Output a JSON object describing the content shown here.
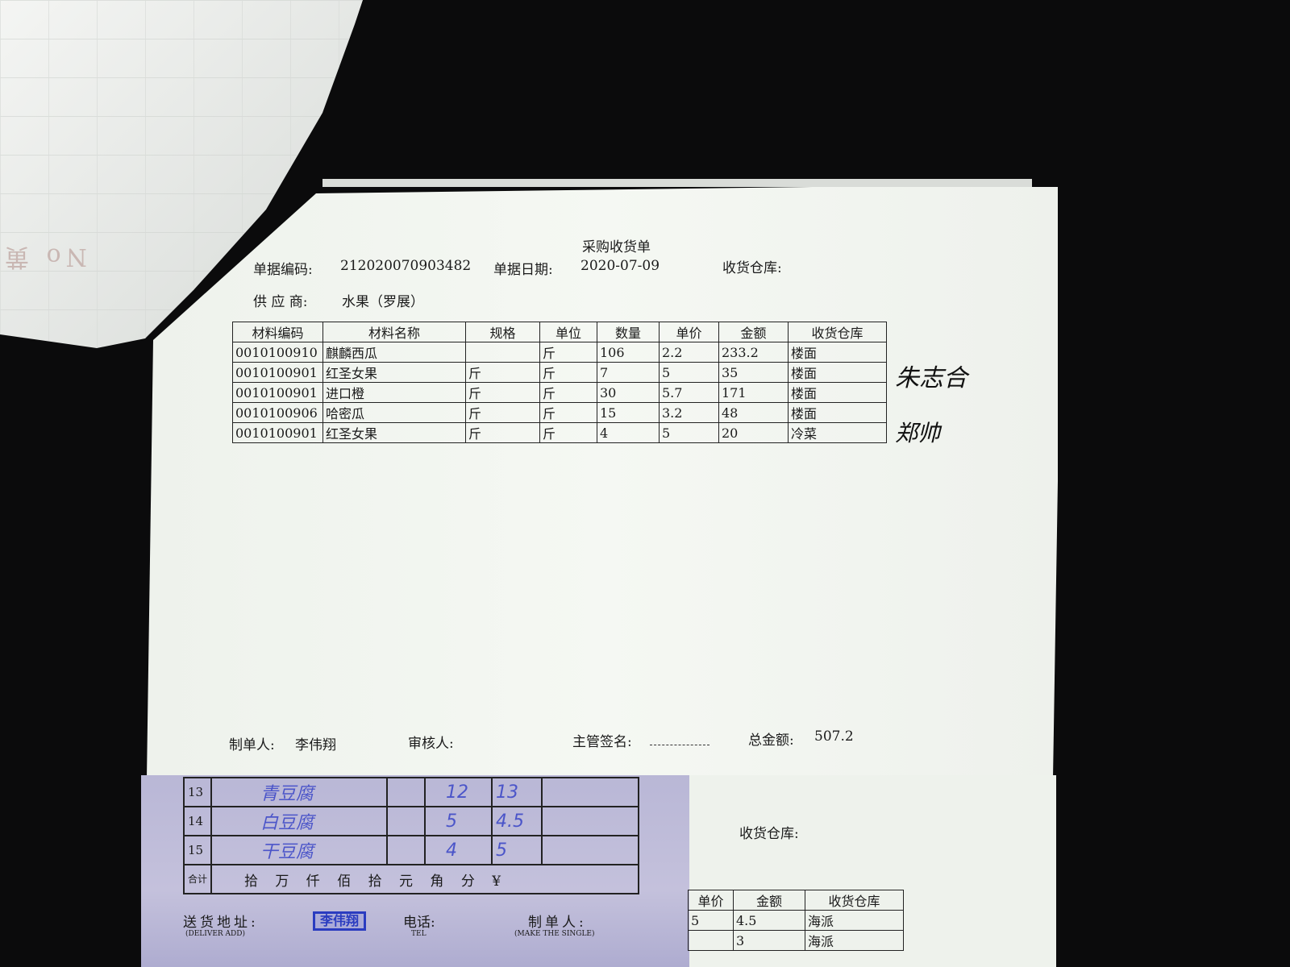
{
  "receipt": {
    "title": "采购收货单",
    "doc_no_label": "单据编码:",
    "doc_no": "212020070903482",
    "doc_date_label": "单据日期:",
    "doc_date": "2020-07-09",
    "warehouse_label": "收货仓库:",
    "supplier_label": "供 应 商:",
    "supplier": "水果（罗展）",
    "columns": [
      "材料编码",
      "材料名称",
      "规格",
      "单位",
      "数量",
      "单价",
      "金额",
      "收货仓库"
    ],
    "rows": [
      [
        "0010100910",
        "麒麟西瓜",
        "",
        "斤",
        "106",
        "2.2",
        "233.2",
        "楼面"
      ],
      [
        "0010100901",
        "红圣女果",
        "斤",
        "斤",
        "7",
        "5",
        "35",
        "楼面"
      ],
      [
        "0010100901",
        "进口橙",
        "斤",
        "斤",
        "30",
        "5.7",
        "171",
        "楼面"
      ],
      [
        "0010100906",
        "哈密瓜",
        "斤",
        "斤",
        "15",
        "3.2",
        "48",
        "楼面"
      ],
      [
        "0010100901",
        "红圣女果",
        "斤",
        "斤",
        "4",
        "5",
        "20",
        "冷菜"
      ]
    ],
    "signature_1": "朱志合",
    "signature_2": "郑帅",
    "maker_label": "制单人:",
    "maker": "李伟翔",
    "reviewer_label": "审核人:",
    "supervisor_label": "主管签名:",
    "total_label": "总金额:",
    "total": "507.2"
  },
  "delivery_note": {
    "rows": [
      {
        "no": "13",
        "item": "青豆腐",
        "qty": "12",
        "price": "13"
      },
      {
        "no": "14",
        "item": "白豆腐",
        "qty": "5",
        "price": "4.5"
      },
      {
        "no": "15",
        "item": "干豆腐",
        "qty": "4",
        "price": "5"
      }
    ],
    "sum_label": "合计",
    "amount_units": "拾 万 仟 佰 拾 元 角 分 ¥",
    "stamp": "李伟翔",
    "address_label": "送货地址:",
    "address_en": "(DELIVER ADD)",
    "tel_label": "电话:",
    "tel_en": "TEL",
    "maker_label": "制单人:",
    "maker_en": "(MAKE THE SINGLE)"
  },
  "second_receipt": {
    "warehouse_label": "收货仓库:",
    "columns": [
      "单价",
      "金额",
      "收货仓库"
    ],
    "rows": [
      [
        "5",
        "4.5",
        "海派"
      ],
      [
        "",
        "3",
        "海派"
      ]
    ]
  }
}
